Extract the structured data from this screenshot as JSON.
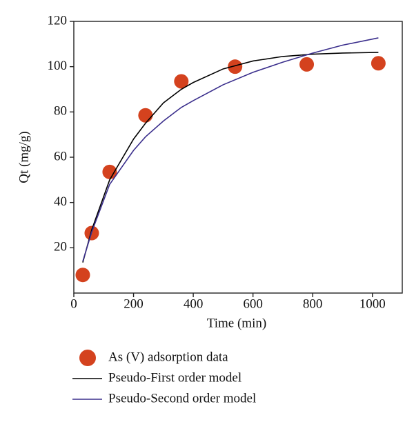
{
  "chart_data": {
    "type": "scatter",
    "x_label": "Time (min)",
    "y_label": "Qt (mg/g)",
    "xlim": [
      0,
      1100
    ],
    "xticks": [
      0,
      200,
      400,
      600,
      800,
      1000
    ],
    "ylim": [
      0,
      120
    ],
    "yticks": [
      20,
      40,
      60,
      80,
      100,
      120
    ],
    "series": [
      {
        "name": "As (V) adsorption data",
        "type": "scatter",
        "color": "#d4421e",
        "x": [
          30,
          60,
          120,
          240,
          360,
          540,
          780,
          1020
        ],
        "values": [
          8,
          26.5,
          53.5,
          78.5,
          93.5,
          100,
          101,
          101.5
        ]
      },
      {
        "name": "Pseudo-First order model",
        "type": "line",
        "color": "#000000",
        "x": [
          30,
          60,
          120,
          200,
          240,
          300,
          360,
          400,
          500,
          600,
          700,
          800,
          900,
          1020
        ],
        "values": [
          13.5,
          28,
          50,
          68,
          75,
          84,
          90,
          93,
          99,
          102.5,
          104.5,
          105.5,
          106,
          106.3
        ]
      },
      {
        "name": "Pseudo-Second order model",
        "type": "line",
        "color": "#3a2e8c",
        "x": [
          30,
          60,
          120,
          200,
          240,
          300,
          360,
          400,
          500,
          600,
          700,
          800,
          900,
          1020
        ],
        "values": [
          14,
          27,
          48,
          63,
          69,
          76,
          82,
          85,
          92,
          97.5,
          102,
          106,
          109.5,
          112.7
        ]
      }
    ]
  }
}
